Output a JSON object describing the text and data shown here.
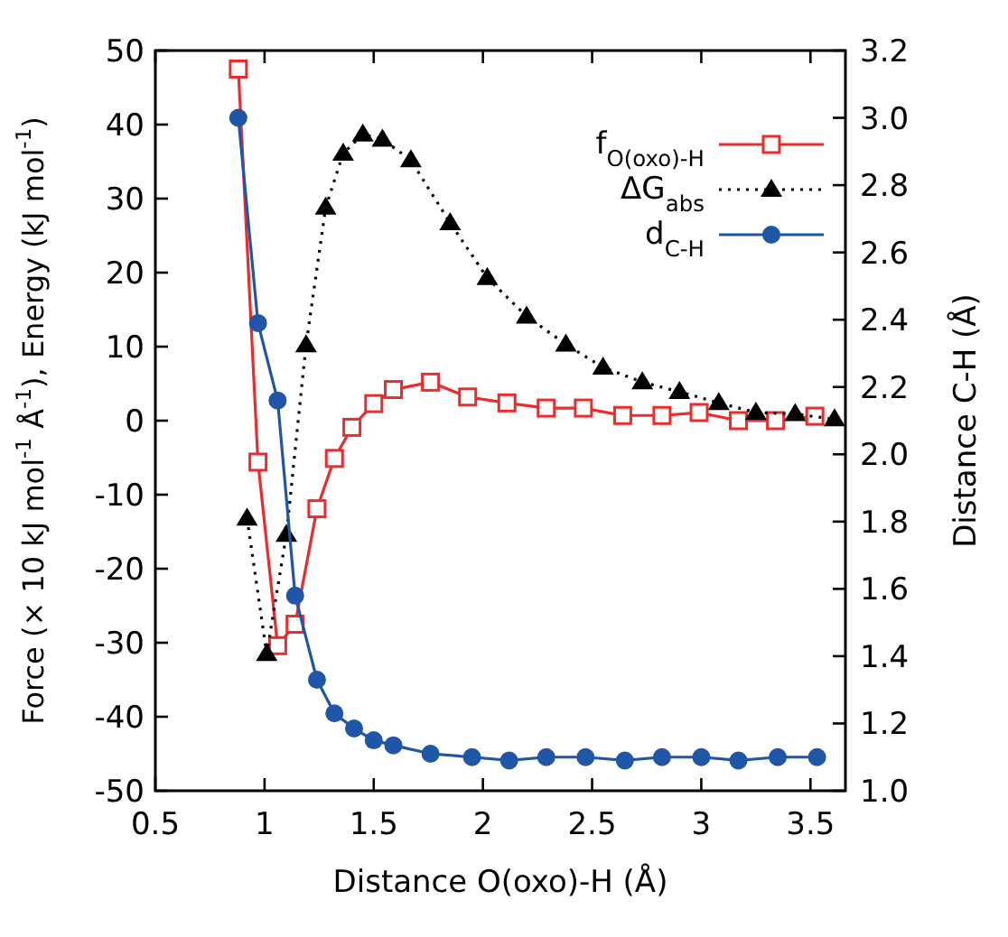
{
  "chart_data": {
    "type": "line",
    "xlabel": "Distance O(oxo)-H (Å)",
    "ylabel": "Force (× 10 kJ mol$^{-1}$ Å$^{-1}$), Energy (kJ mol$^{-1}$)",
    "y2label": "Distance C-H (Å)",
    "xlim": [
      0.5,
      3.66
    ],
    "xticks": [
      0.5,
      1,
      1.5,
      2,
      2.5,
      3,
      3.5
    ],
    "ylim": [
      -50,
      50
    ],
    "yticks": [
      -50,
      -40,
      -30,
      -20,
      -10,
      0,
      10,
      20,
      30,
      40,
      50
    ],
    "y2lim": [
      1.0,
      3.2
    ],
    "y2ticks": [
      {
        "value": 1.0,
        "label": "1.0"
      },
      1.2,
      1.4,
      1.6,
      1.8,
      {
        "value": 2.0,
        "label": "2.0"
      },
      2.2,
      2.4,
      2.6,
      2.8,
      {
        "value": 3.0,
        "label": "3.0"
      },
      3.2
    ],
    "grid": false,
    "legend": "top right",
    "series": [
      {
        "name": "f$_{O(oxo)-H}$",
        "color": "#ee2a2a",
        "marker": "square",
        "line_style": "solid",
        "x": [
          0.88,
          0.97,
          1.06,
          1.14,
          1.24,
          1.32,
          1.4,
          1.5,
          1.59,
          1.76,
          1.93,
          2.11,
          2.29,
          2.46,
          2.64,
          2.82,
          2.99,
          3.17,
          3.34,
          3.52
        ],
        "values": [
          47.5,
          -5.6,
          -30.4,
          -27.5,
          -11.9,
          -5.1,
          -0.9,
          2.3,
          4.2,
          5.2,
          3.2,
          2.4,
          1.7,
          1.7,
          0.7,
          0.7,
          1.1,
          0.0,
          0.0,
          0.6
        ]
      },
      {
        "name": "ΔG$_{abs}$",
        "color": "#000000",
        "marker": "triangle",
        "line_style": "dotted",
        "x": [
          0.92,
          1.01,
          1.1,
          1.19,
          1.28,
          1.36,
          1.45,
          1.54,
          1.67,
          1.85,
          2.02,
          2.2,
          2.38,
          2.55,
          2.73,
          2.9,
          3.08,
          3.25,
          3.43,
          3.61
        ],
        "values": [
          -13.2,
          -31.5,
          -15.4,
          10.2,
          28.8,
          36.1,
          38.7,
          38.0,
          35.2,
          26.7,
          19.3,
          14.1,
          10.3,
          7.2,
          5.2,
          3.9,
          2.4,
          1.1,
          0.9,
          0.2
        ]
      },
      {
        "name": "d$_{C-H}$",
        "color": "#1f56a8",
        "marker": "circle",
        "line_style": "solid",
        "axis": "y2",
        "x": [
          0.88,
          0.97,
          1.06,
          1.14,
          1.24,
          1.32,
          1.41,
          1.5,
          1.59,
          1.76,
          1.95,
          2.12,
          2.29,
          2.47,
          2.65,
          2.82,
          3.0,
          3.17,
          3.35,
          3.53
        ],
        "values": [
          3.0,
          2.39,
          2.16,
          1.58,
          1.33,
          1.23,
          1.185,
          1.15,
          1.135,
          1.11,
          1.1,
          1.09,
          1.1,
          1.1,
          1.09,
          1.1,
          1.1,
          1.09,
          1.1,
          1.1
        ]
      }
    ]
  }
}
